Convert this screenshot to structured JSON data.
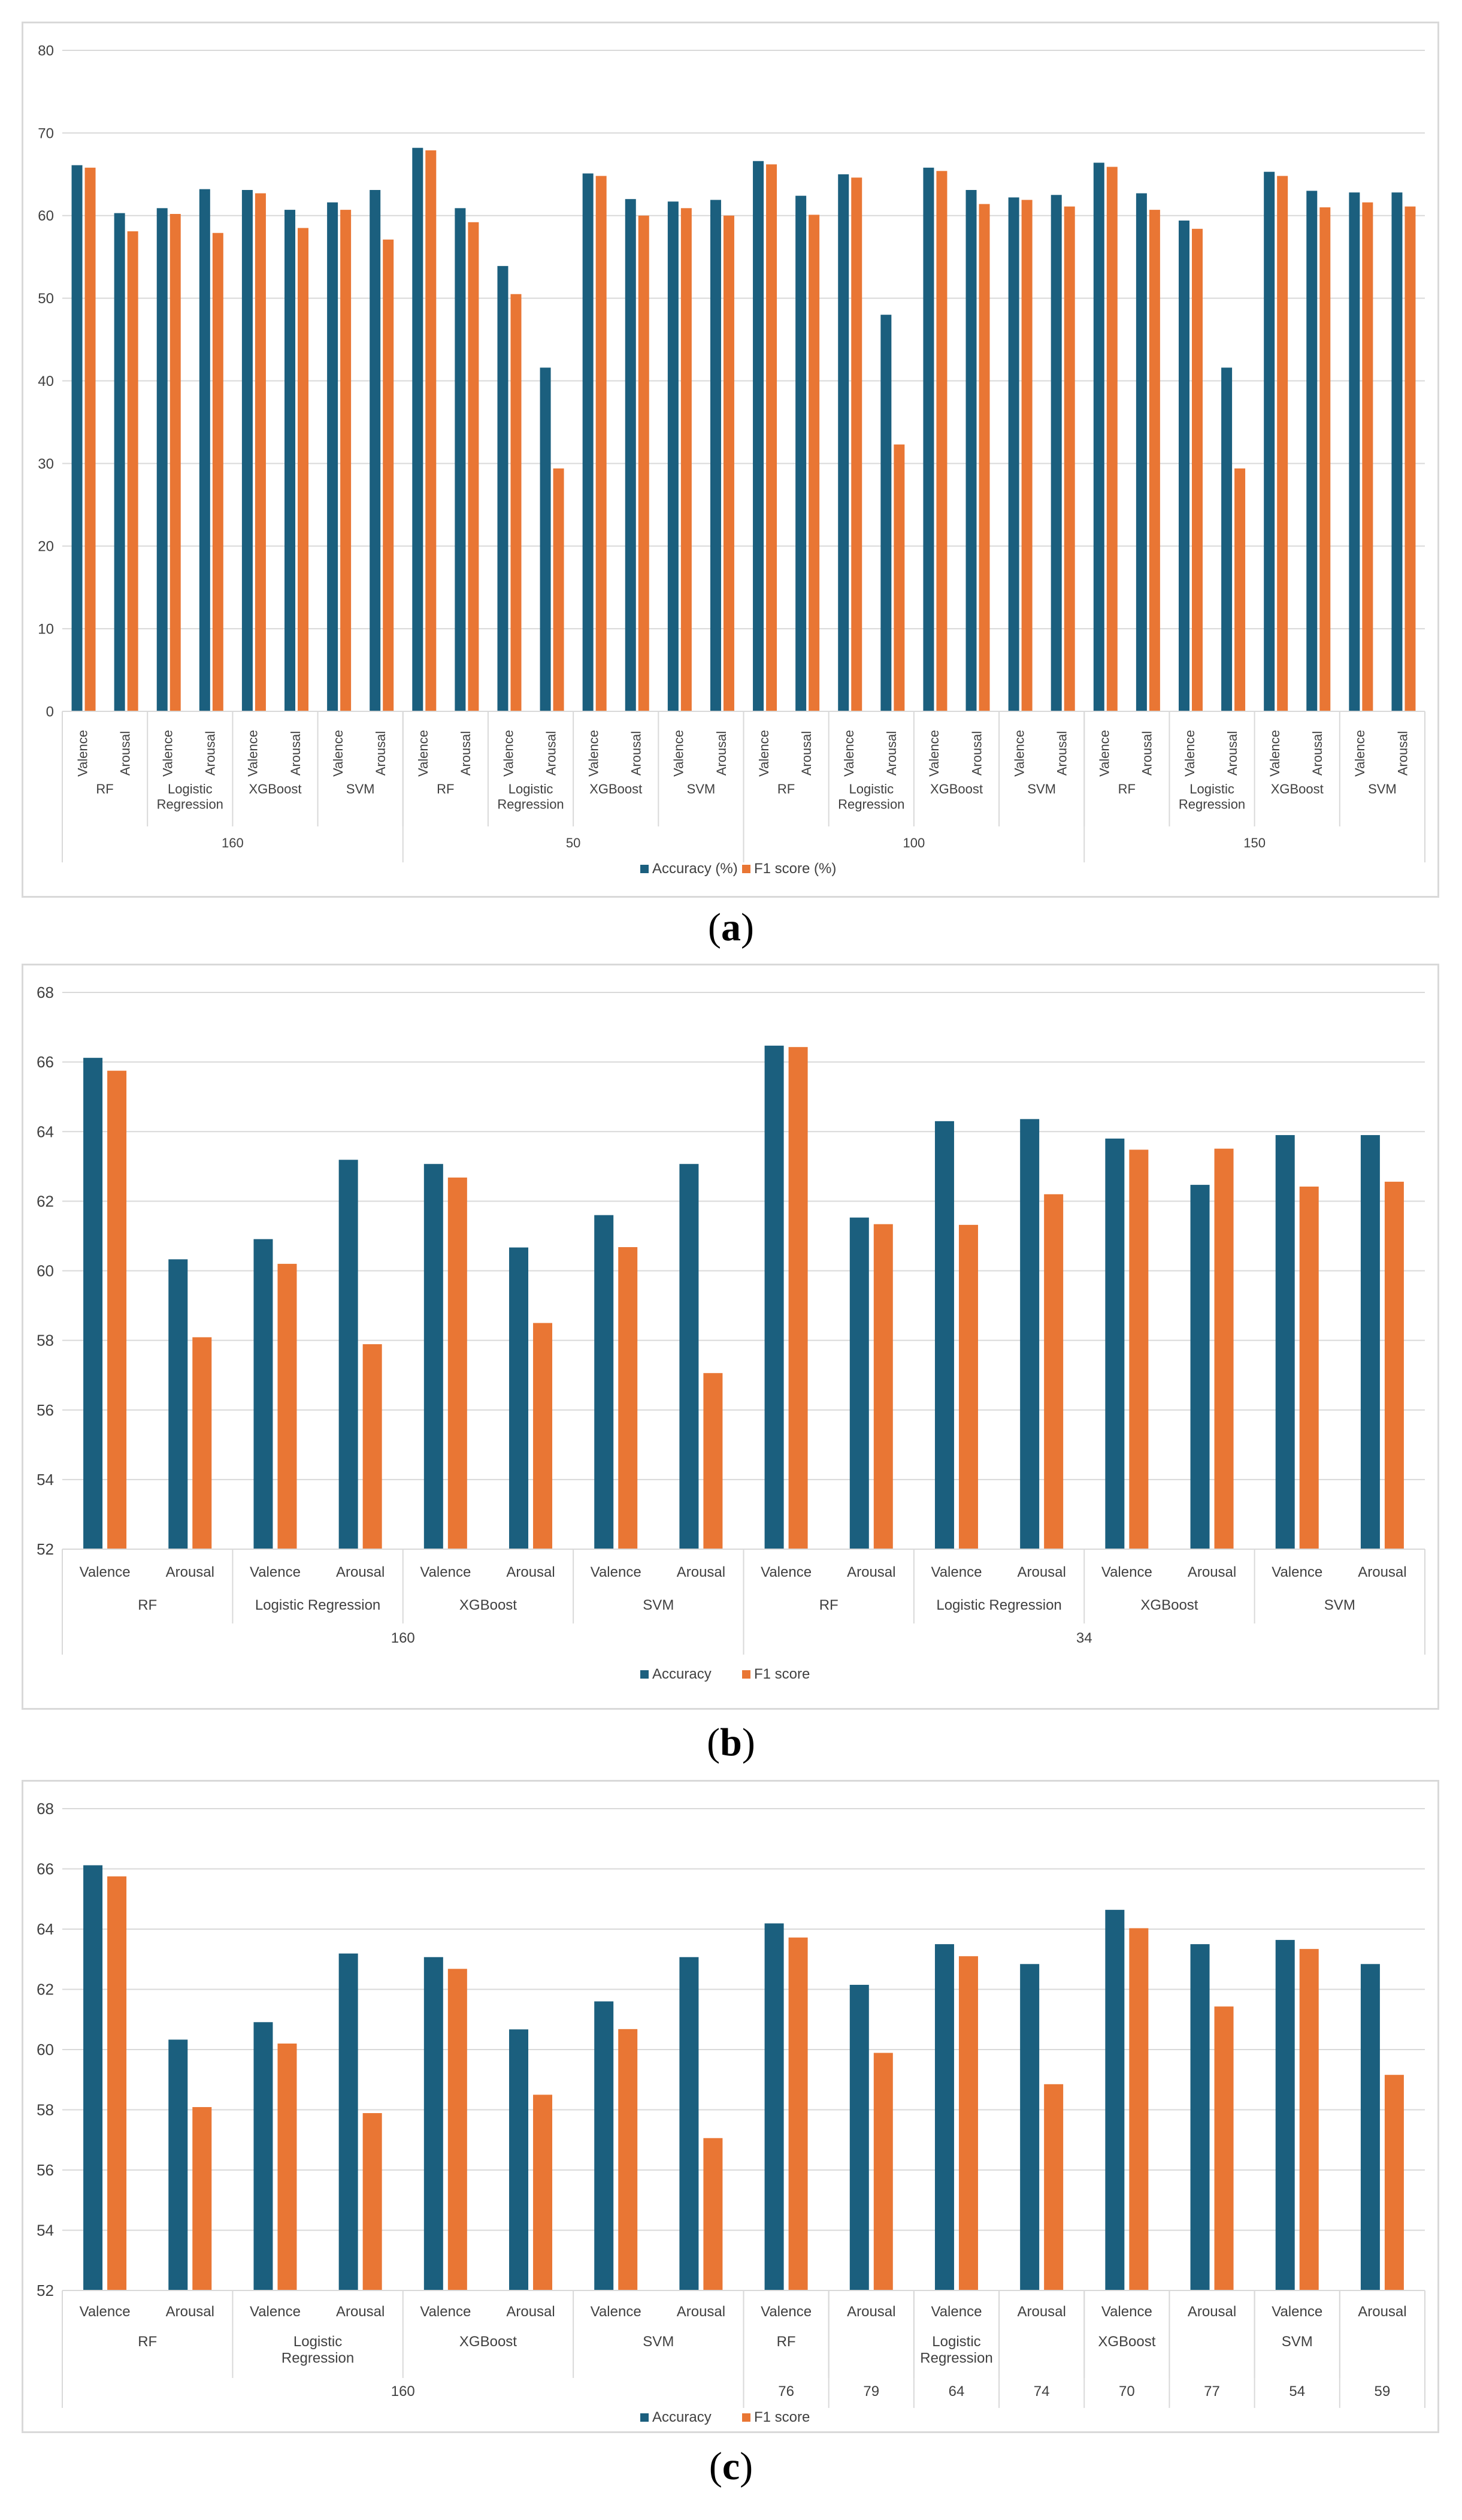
{
  "colors": {
    "accuracy": "#1b5f7e",
    "f1": "#e97634",
    "grid": "#d9d9d9",
    "text": "#404040"
  },
  "chart_data": [
    {
      "id": "a",
      "type": "bar",
      "caption": "a",
      "ylim": [
        0,
        80
      ],
      "yticks": [
        0,
        10,
        20,
        30,
        40,
        50,
        60,
        70,
        80
      ],
      "legend_position": "bottom",
      "category_labels_rotated": true,
      "categories": [
        "Valence",
        "Arousal",
        "Valence",
        "Arousal",
        "Valence",
        "Arousal",
        "Valence",
        "Arousal",
        "Valence",
        "Arousal",
        "Valence",
        "Arousal",
        "Valence",
        "Arousal",
        "Valence",
        "Arousal",
        "Valence",
        "Arousal",
        "Valence",
        "Arousal",
        "Valence",
        "Arousal",
        "Valence",
        "Arousal",
        "Valence",
        "Arousal",
        "Valence",
        "Arousal",
        "Valence",
        "Arousal",
        "Valence",
        "Arousal"
      ],
      "level2": [
        {
          "label": "RF",
          "span": 2
        },
        {
          "label": "Logistic Regression",
          "span": 2
        },
        {
          "label": "XGBoost",
          "span": 2
        },
        {
          "label": "SVM",
          "span": 2
        },
        {
          "label": "RF",
          "span": 2
        },
        {
          "label": "Logistic Regression",
          "span": 2
        },
        {
          "label": "XGBoost",
          "span": 2
        },
        {
          "label": "SVM",
          "span": 2
        },
        {
          "label": "RF",
          "span": 2
        },
        {
          "label": "Logistic Regression",
          "span": 2
        },
        {
          "label": "XGBoost",
          "span": 2
        },
        {
          "label": "SVM",
          "span": 2
        },
        {
          "label": "RF",
          "span": 2
        },
        {
          "label": "Logistic Regression",
          "span": 2
        },
        {
          "label": "XGBoost",
          "span": 2
        },
        {
          "label": "SVM",
          "span": 2
        }
      ],
      "level3": [
        {
          "label": "160",
          "span": 8
        },
        {
          "label": "50",
          "span": 8
        },
        {
          "label": "100",
          "span": 8
        },
        {
          "label": "150",
          "span": 8
        }
      ],
      "series": [
        {
          "name": "Accuracy (%)",
          "values": [
            66.1,
            60.3,
            60.9,
            63.2,
            63.1,
            60.7,
            61.6,
            63.1,
            68.2,
            60.9,
            53.9,
            41.6,
            65.1,
            62.0,
            61.7,
            61.9,
            66.6,
            62.4,
            65.0,
            48.0,
            65.8,
            63.1,
            62.2,
            62.5,
            66.4,
            62.7,
            59.4,
            41.6,
            65.3,
            63.0,
            62.8,
            62.8
          ]
        },
        {
          "name": "F1 score (%)",
          "values": [
            65.8,
            58.1,
            60.2,
            57.9,
            62.7,
            58.5,
            60.7,
            57.1,
            67.9,
            59.2,
            50.5,
            29.4,
            64.8,
            60.0,
            60.9,
            60.0,
            66.2,
            60.1,
            64.6,
            32.3,
            65.4,
            61.4,
            61.9,
            61.1,
            65.9,
            60.7,
            58.4,
            29.4,
            64.8,
            61.0,
            61.6,
            61.1
          ]
        }
      ]
    },
    {
      "id": "b",
      "type": "bar",
      "caption": "b",
      "ylim": [
        52,
        68
      ],
      "yticks": [
        52,
        54,
        56,
        58,
        60,
        62,
        64,
        66,
        68
      ],
      "legend_position": "bottom",
      "category_labels_rotated": false,
      "categories": [
        "Valence",
        "Arousal",
        "Valence",
        "Arousal",
        "Valence",
        "Arousal",
        "Valence",
        "Arousal",
        "Valence",
        "Arousal",
        "Valence",
        "Arousal",
        "Valence",
        "Arousal",
        "Valence",
        "Arousal"
      ],
      "level2": [
        {
          "label": "RF",
          "span": 2
        },
        {
          "label": "Logistic Regression",
          "span": 2
        },
        {
          "label": "XGBoost",
          "span": 2
        },
        {
          "label": "SVM",
          "span": 2
        },
        {
          "label": "RF",
          "span": 2
        },
        {
          "label": "Logistic Regression",
          "span": 2
        },
        {
          "label": "XGBoost",
          "span": 2
        },
        {
          "label": "SVM",
          "span": 2
        }
      ],
      "level3": [
        {
          "label": "160",
          "span": 8
        },
        {
          "label": "34",
          "span": 8
        }
      ],
      "series": [
        {
          "name": "Accuracy",
          "values": [
            66.12,
            60.33,
            60.91,
            63.19,
            63.07,
            60.67,
            61.6,
            63.07,
            66.47,
            61.53,
            64.3,
            64.36,
            63.8,
            62.47,
            63.9,
            63.9
          ]
        },
        {
          "name": "F1 score",
          "values": [
            65.75,
            58.09,
            60.2,
            57.89,
            62.68,
            58.5,
            60.68,
            57.06,
            66.43,
            61.34,
            61.32,
            62.2,
            63.48,
            63.51,
            62.42,
            62.56
          ]
        }
      ]
    },
    {
      "id": "c",
      "type": "bar",
      "caption": "c",
      "ylim": [
        52,
        68
      ],
      "yticks": [
        52,
        54,
        56,
        58,
        60,
        62,
        64,
        66,
        68
      ],
      "legend_position": "bottom",
      "category_labels_rotated": false,
      "categories": [
        "Valence",
        "Arousal",
        "Valence",
        "Arousal",
        "Valence",
        "Arousal",
        "Valence",
        "Arousal",
        "Valence",
        "Arousal",
        "Valence",
        "Arousal",
        "Valence",
        "Arousal",
        "Valence",
        "Arousal"
      ],
      "level2": [
        {
          "label": "RF",
          "span": 2
        },
        {
          "label": "Logistic Regression",
          "span": 2
        },
        {
          "label": "XGBoost",
          "span": 2
        },
        {
          "label": "SVM",
          "span": 2
        },
        {
          "label": "RF",
          "span": 1
        },
        {
          "label": "",
          "span": 1
        },
        {
          "label": "Logistic Regression",
          "span": 1
        },
        {
          "label": "",
          "span": 1
        },
        {
          "label": "XGBoost",
          "span": 1
        },
        {
          "label": "",
          "span": 1
        },
        {
          "label": "SVM",
          "span": 1
        },
        {
          "label": "",
          "span": 1
        }
      ],
      "level3": [
        {
          "label": "160",
          "span": 8
        },
        {
          "label": "76",
          "span": 1
        },
        {
          "label": "79",
          "span": 1
        },
        {
          "label": "64",
          "span": 1
        },
        {
          "label": "74",
          "span": 1
        },
        {
          "label": "70",
          "span": 1
        },
        {
          "label": "77",
          "span": 1
        },
        {
          "label": "54",
          "span": 1
        },
        {
          "label": "59",
          "span": 1
        }
      ],
      "series": [
        {
          "name": "Accuracy",
          "values": [
            66.12,
            60.33,
            60.91,
            63.19,
            63.07,
            60.67,
            61.6,
            63.07,
            64.19,
            62.15,
            63.5,
            62.84,
            64.64,
            63.5,
            63.64,
            62.84
          ]
        },
        {
          "name": "F1 score",
          "values": [
            65.75,
            58.09,
            60.2,
            57.89,
            62.68,
            58.5,
            60.68,
            57.06,
            63.72,
            59.89,
            63.1,
            58.85,
            64.03,
            61.43,
            63.34,
            59.16
          ]
        }
      ]
    }
  ]
}
